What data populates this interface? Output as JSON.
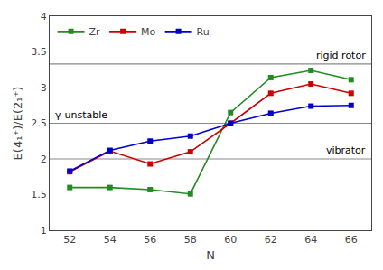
{
  "chart_data": {
    "type": "line",
    "x": [
      52,
      54,
      56,
      58,
      60,
      62,
      64,
      66
    ],
    "series": [
      {
        "name": "Zr",
        "color": "#228B22",
        "marker": "square",
        "values": [
          1.6,
          1.6,
          1.57,
          1.51,
          2.65,
          3.14,
          3.24,
          3.11
        ]
      },
      {
        "name": "Mo",
        "color": "#CC0000",
        "marker": "square",
        "values": [
          1.82,
          2.11,
          1.93,
          2.1,
          2.5,
          2.92,
          3.05,
          2.92
        ]
      },
      {
        "name": "Ru",
        "color": "#0000CC",
        "marker": "square",
        "values": [
          1.83,
          2.12,
          2.25,
          2.32,
          2.5,
          2.64,
          2.74,
          2.75
        ]
      }
    ],
    "annotations": [
      {
        "text": "rigid rotor",
        "y": 3.33,
        "color": "#888888"
      },
      {
        "text": "γ-unstable",
        "y": 2.5,
        "color": "#888888"
      },
      {
        "text": "vibrator",
        "y": 2.0,
        "color": "#888888"
      }
    ],
    "xlabel": "N",
    "ylabel": "E(4₁⁺)/E(2₁⁺)",
    "xlim": [
      51.0,
      67.0
    ],
    "ylim": [
      1.0,
      4.0
    ],
    "xticks": [
      52,
      54,
      56,
      58,
      60,
      62,
      64,
      66
    ],
    "yticks": [
      1,
      1.5,
      2,
      2.5,
      3,
      3.5,
      4
    ],
    "grid": false,
    "legend": "upper left"
  }
}
